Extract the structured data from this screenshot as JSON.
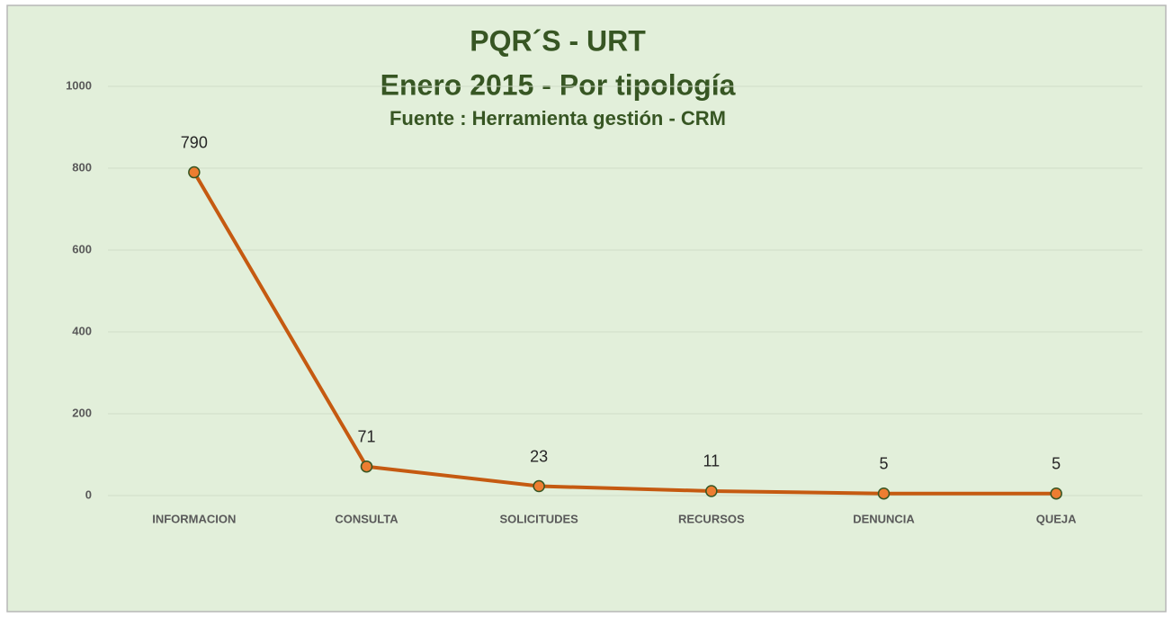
{
  "chart_data": {
    "type": "line",
    "title": "PQR´S - URT",
    "subtitle": "Enero 2015 - Por tipología",
    "source": "Fuente : Herramienta gestión - CRM",
    "categories": [
      "INFORMACION",
      "CONSULTA",
      "SOLICITUDES",
      "RECURSOS",
      "DENUNCIA",
      "QUEJA"
    ],
    "values": [
      790,
      71,
      23,
      11,
      5,
      5
    ],
    "color": "#c55a11",
    "marker_color": "#ed7d31",
    "ylim": [
      0,
      1000
    ],
    "yticks": [
      0,
      200,
      400,
      600,
      800,
      1000
    ],
    "grid": true
  }
}
